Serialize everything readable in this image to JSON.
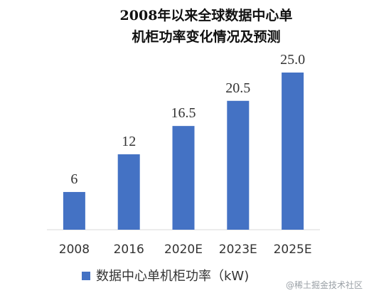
{
  "chart_data": {
    "type": "bar",
    "title_lines": [
      "2008年以来全球数据中心单",
      "机柜功率变化情况及预测"
    ],
    "categories": [
      "2008",
      "2016",
      "2020E",
      "2023E",
      "2025E"
    ],
    "series": [
      {
        "name": "数据中心单机柜功率（kW)",
        "values": [
          6,
          12,
          16.5,
          20.5,
          25.0
        ]
      }
    ],
    "value_labels": [
      "6",
      "12",
      "16.5",
      "20.5",
      "25.0"
    ],
    "xlabel": "",
    "ylabel": "",
    "ylim": [
      0,
      25
    ],
    "grid": false,
    "legend_position": "bottom",
    "colors": {
      "bar": "#4472C4",
      "baseline": "#d9d9d9"
    }
  },
  "watermark": {
    "text": "@稀土掘金技术社区"
  }
}
